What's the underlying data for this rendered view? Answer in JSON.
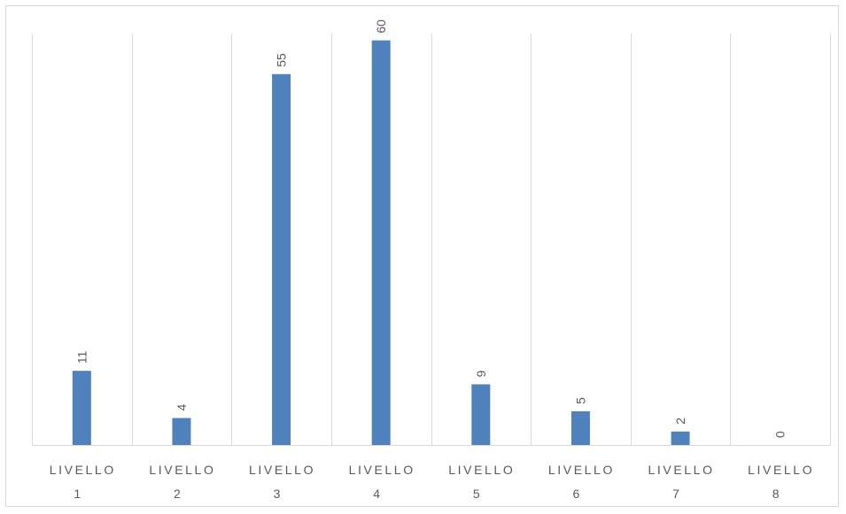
{
  "chart_data": {
    "type": "bar",
    "categories": [
      [
        "LIVELLO",
        "1"
      ],
      [
        "LIVELLO",
        "2"
      ],
      [
        "LIVELLO",
        "3"
      ],
      [
        "LIVELLO",
        "4"
      ],
      [
        "LIVELLO",
        "5"
      ],
      [
        "LIVELLO",
        "6"
      ],
      [
        "LIVELLO",
        "7"
      ],
      [
        "LIVELLO",
        "8"
      ]
    ],
    "values": [
      11,
      4,
      55,
      60,
      9,
      5,
      2,
      0
    ],
    "ylim": [
      0,
      61
    ],
    "grid": "vertical category separators",
    "data_labels": "rotated, above bars",
    "colors": {
      "bar": "#4f81bd",
      "grid": "#d9d9d9",
      "text": "#595959"
    }
  }
}
